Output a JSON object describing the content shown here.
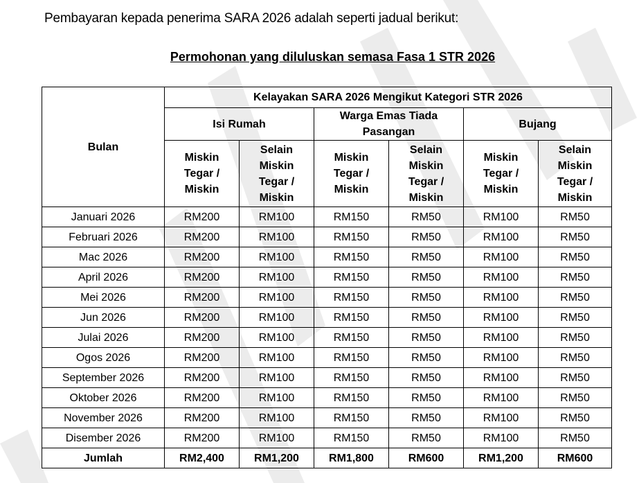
{
  "intro": "Pembayaran kepada penerima SARA 2026 adalah seperti jadual berikut:",
  "subtitle": "Permohonan yang diluluskan semasa Fasa 1 STR 2026",
  "table": {
    "month_header": "Bulan",
    "group_header": "Kelayakan SARA 2026 Mengikut Kategori STR 2026",
    "categories": [
      "Isi Rumah",
      "Warga Emas Tiada Pasangan",
      "Bujang"
    ],
    "sub_headers": [
      "Miskin Tegar / Miskin",
      "Selain Miskin Tegar / Miskin",
      "Miskin Tegar / Miskin",
      "Selain Miskin Tegar / Miskin",
      "Miskin Tegar / Miskin",
      "Selain Miskin Tegar / Miskin"
    ],
    "rows": [
      [
        "Januari 2026",
        "RM200",
        "RM100",
        "RM150",
        "RM50",
        "RM100",
        "RM50"
      ],
      [
        "Februari 2026",
        "RM200",
        "RM100",
        "RM150",
        "RM50",
        "RM100",
        "RM50"
      ],
      [
        "Mac 2026",
        "RM200",
        "RM100",
        "RM150",
        "RM50",
        "RM100",
        "RM50"
      ],
      [
        "April 2026",
        "RM200",
        "RM100",
        "RM150",
        "RM50",
        "RM100",
        "RM50"
      ],
      [
        "Mei 2026",
        "RM200",
        "RM100",
        "RM150",
        "RM50",
        "RM100",
        "RM50"
      ],
      [
        "Jun 2026",
        "RM200",
        "RM100",
        "RM150",
        "RM50",
        "RM100",
        "RM50"
      ],
      [
        "Julai 2026",
        "RM200",
        "RM100",
        "RM150",
        "RM50",
        "RM100",
        "RM50"
      ],
      [
        "Ogos 2026",
        "RM200",
        "RM100",
        "RM150",
        "RM50",
        "RM100",
        "RM50"
      ],
      [
        "September 2026",
        "RM200",
        "RM100",
        "RM150",
        "RM50",
        "RM100",
        "RM50"
      ],
      [
        "Oktober 2026",
        "RM200",
        "RM100",
        "RM150",
        "RM50",
        "RM100",
        "RM50"
      ],
      [
        "November 2026",
        "RM200",
        "RM100",
        "RM150",
        "RM50",
        "RM100",
        "RM50"
      ],
      [
        "Disember 2026",
        "RM200",
        "RM100",
        "RM150",
        "RM50",
        "RM100",
        "RM50"
      ]
    ],
    "total": [
      "Jumlah",
      "RM2,400",
      "RM1,200",
      "RM1,800",
      "RM600",
      "RM1,200",
      "RM600"
    ]
  },
  "watermark_color": "#ececec"
}
